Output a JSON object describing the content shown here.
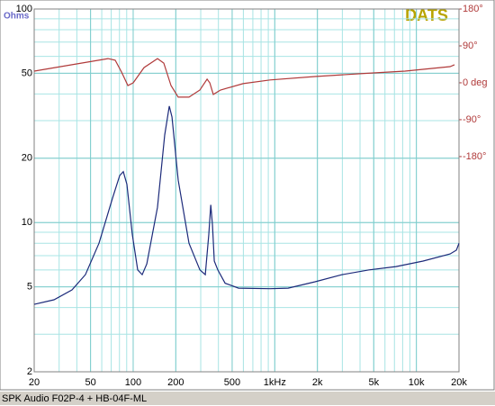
{
  "chart_data": {
    "type": "line",
    "watermark": "DATS",
    "y_label": "Ohms",
    "xscale": "log",
    "yscale": "log",
    "grid": true,
    "xlim": [
      20,
      20000
    ],
    "ylim": [
      2,
      100
    ],
    "y2lim": [
      -705,
      180
    ],
    "xticks": [
      20,
      50,
      100,
      200,
      500,
      {
        "value": 1000,
        "label": "1kHz"
      },
      {
        "value": 2000,
        "label": "2k"
      },
      {
        "value": 5000,
        "label": "5k"
      },
      {
        "value": 10000,
        "label": "10k"
      },
      {
        "value": 20000,
        "label": "20k"
      }
    ],
    "yticks": [
      2,
      5,
      10,
      20,
      50,
      100
    ],
    "y2ticks": [
      {
        "value": 180,
        "label": "180°"
      },
      {
        "value": 90,
        "label": "90°"
      },
      {
        "value": 0,
        "label": "0 deg"
      },
      {
        "value": -90,
        "label": "-90°"
      },
      {
        "value": -180,
        "label": "-180°"
      }
    ],
    "y2_color": "#b03a3a",
    "y_label_color": "#6868c8",
    "watermark_color": "#b8a400",
    "grid_color": "#a8e4e4",
    "series": [
      {
        "color": "#1c2a7a",
        "x": [
          20,
          27.6,
          37,
          46,
          57.4,
          71.5,
          80.3,
          85.2,
          90.3,
          98.6,
          107.7,
          115.8,
          124.8,
          148.6,
          167,
          180,
          188,
          208,
          248,
          296,
          323,
          342,
          353,
          363,
          374,
          396,
          446,
          555,
          927,
          1241,
          1925,
          2986,
          4632,
          7189,
          11150,
          17300,
          19170,
          20000
        ],
        "values": [
          4.14,
          4.35,
          4.84,
          5.7,
          8.0,
          13.0,
          16.6,
          17.3,
          15.1,
          8.8,
          6.0,
          5.7,
          6.4,
          11.8,
          25.7,
          35.1,
          31.2,
          15.8,
          8.0,
          6.0,
          5.7,
          8.8,
          12.1,
          9.7,
          6.6,
          6.0,
          5.2,
          4.93,
          4.9,
          4.93,
          5.28,
          5.7,
          6.0,
          6.22,
          6.6,
          7.13,
          7.42,
          8.0
        ]
      },
      {
        "color": "#b03a3a",
        "axis": "y2",
        "x": [
          20,
          37,
          66.4,
          74.7,
          82.8,
          91.7,
          100,
          119.3,
          148.6,
          164.6,
          185,
          208,
          248,
          296,
          332.6,
          347.5,
          368,
          414,
          597,
          927,
          1925,
          4000,
          8320,
          17300,
          18600
        ],
        "values": [
          28.5,
          44,
          59,
          55,
          26,
          -6.6,
          0,
          37,
          59,
          48,
          -6.6,
          -35,
          -35,
          -17.6,
          9,
          0,
          -28.5,
          -17.6,
          -2,
          7,
          15.4,
          22,
          28.5,
          39.5,
          44
        ]
      }
    ]
  },
  "status_bar": {
    "text": "SPK Audio F02P-4 + HB-04F-ML"
  }
}
